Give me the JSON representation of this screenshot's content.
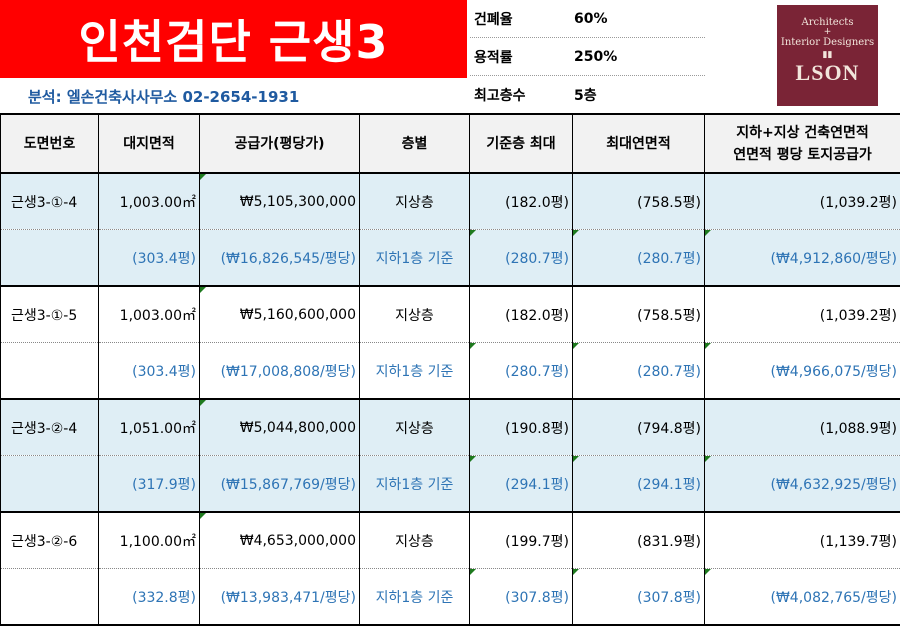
{
  "header": {
    "title": "인천검단 근생3",
    "analysis": "분석: 엘손건축사사무소 02-2654-1931"
  },
  "specs": [
    {
      "label": "건폐율",
      "value": "60%"
    },
    {
      "label": "용적률",
      "value": "250%"
    },
    {
      "label": "최고층수",
      "value": "5층"
    }
  ],
  "logo": {
    "line1": "Architects",
    "line2": "+",
    "line3": "Interior Designers",
    "brand": "LSON"
  },
  "table": {
    "columns": [
      "도면번호",
      "대지면적",
      "공급가(평당가)",
      "층별",
      "기준층 최대",
      "최대연면적",
      "지하+지상 건축연면적\n연면적 평당 토지공급가"
    ],
    "rows": [
      {
        "id": "근생3-①-4",
        "area": "1,003.00㎡",
        "price": "₩5,105,300,000",
        "floor": "지상층",
        "base": "(182.0평)",
        "max": "(758.5평)",
        "total": "(1,039.2평)",
        "area_py": "(303.4평)",
        "price_py": "(₩16,826,545/평당)",
        "floor2": "지하1층 기준",
        "base2": "(280.7평)",
        "max2": "(280.7평)",
        "total_py": "(₩4,912,860/평당)"
      },
      {
        "id": "근생3-①-5",
        "area": "1,003.00㎡",
        "price": "₩5,160,600,000",
        "floor": "지상층",
        "base": "(182.0평)",
        "max": "(758.5평)",
        "total": "(1,039.2평)",
        "area_py": "(303.4평)",
        "price_py": "(₩17,008,808/평당)",
        "floor2": "지하1층 기준",
        "base2": "(280.7평)",
        "max2": "(280.7평)",
        "total_py": "(₩4,966,075/평당)"
      },
      {
        "id": "근생3-②-4",
        "area": "1,051.00㎡",
        "price": "₩5,044,800,000",
        "floor": "지상층",
        "base": "(190.8평)",
        "max": "(794.8평)",
        "total": "(1,088.9평)",
        "area_py": "(317.9평)",
        "price_py": "(₩15,867,769/평당)",
        "floor2": "지하1층 기준",
        "base2": "(294.1평)",
        "max2": "(294.1평)",
        "total_py": "(₩4,632,925/평당)"
      },
      {
        "id": "근생3-②-6",
        "area": "1,100.00㎡",
        "price": "₩4,653,000,000",
        "floor": "지상층",
        "base": "(199.7평)",
        "max": "(831.9평)",
        "total": "(1,139.7평)",
        "area_py": "(332.8평)",
        "price_py": "(₩13,983,471/평당)",
        "floor2": "지하1층 기준",
        "base2": "(307.8평)",
        "max2": "(307.8평)",
        "total_py": "(₩4,082,765/평당)"
      }
    ]
  },
  "colors": {
    "title_bg": "#ff0000",
    "accent_blue": "#2e74b5",
    "shade": "#dfeef5",
    "logo_bg": "#7a2436"
  }
}
